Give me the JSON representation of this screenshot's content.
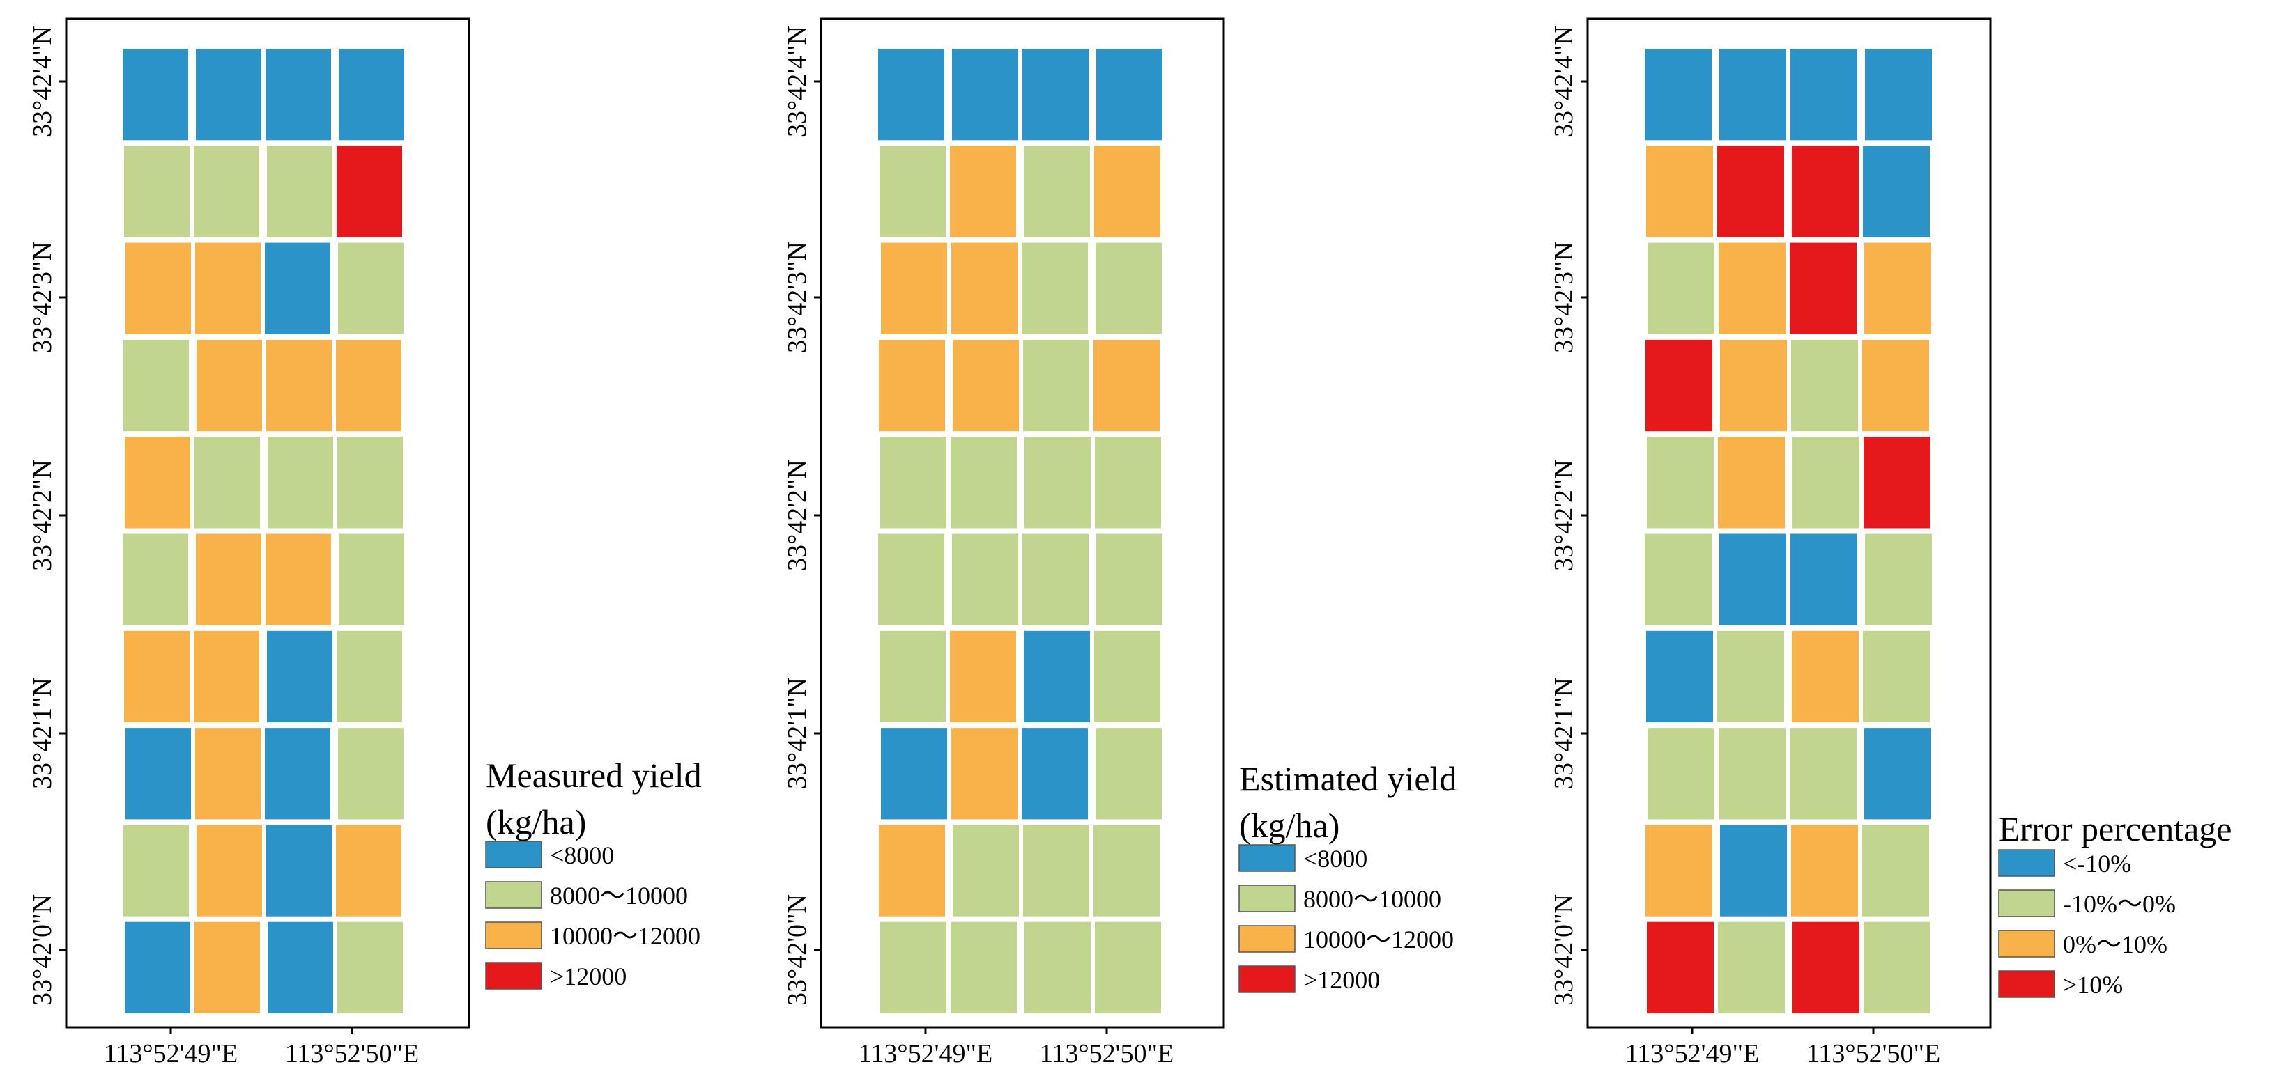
{
  "colors": {
    "blue": "#2b93c8",
    "green": "#c2d58e",
    "orange": "#f9b24a",
    "red": "#e5191c"
  },
  "panels": [
    {
      "id": "measured",
      "legend": {
        "title_line1": "Measured yield",
        "title_line2": "(kg/ha)",
        "items": [
          {
            "label": "<8000",
            "color": "blue"
          },
          {
            "label": "8000～10000",
            "color": "green"
          },
          {
            "label": "10000～12000",
            "color": "orange"
          },
          {
            "label": ">12000",
            "color": "red"
          }
        ]
      },
      "grid": [
        [
          "blue",
          "blue",
          "blue",
          "blue"
        ],
        [
          "green",
          "green",
          "green",
          "red"
        ],
        [
          "orange",
          "orange",
          "blue",
          "green"
        ],
        [
          "green",
          "orange",
          "orange",
          "orange"
        ],
        [
          "orange",
          "green",
          "green",
          "green"
        ],
        [
          "green",
          "orange",
          "orange",
          "green"
        ],
        [
          "orange",
          "orange",
          "blue",
          "green"
        ],
        [
          "blue",
          "orange",
          "blue",
          "green"
        ],
        [
          "green",
          "orange",
          "blue",
          "orange"
        ],
        [
          "blue",
          "orange",
          "blue",
          "green"
        ]
      ]
    },
    {
      "id": "estimated",
      "legend": {
        "title_line1": "Estimated yield",
        "title_line2": "(kg/ha)",
        "items": [
          {
            "label": "<8000",
            "color": "blue"
          },
          {
            "label": "8000～10000",
            "color": "green"
          },
          {
            "label": "10000～12000",
            "color": "orange"
          },
          {
            "label": ">12000",
            "color": "red"
          }
        ]
      },
      "grid": [
        [
          "blue",
          "blue",
          "blue",
          "blue"
        ],
        [
          "green",
          "orange",
          "green",
          "orange"
        ],
        [
          "orange",
          "orange",
          "green",
          "green"
        ],
        [
          "orange",
          "orange",
          "green",
          "orange"
        ],
        [
          "green",
          "green",
          "green",
          "green"
        ],
        [
          "green",
          "green",
          "green",
          "green"
        ],
        [
          "green",
          "orange",
          "blue",
          "green"
        ],
        [
          "blue",
          "orange",
          "blue",
          "green"
        ],
        [
          "orange",
          "green",
          "green",
          "green"
        ],
        [
          "green",
          "green",
          "green",
          "green"
        ]
      ]
    },
    {
      "id": "error",
      "legend": {
        "title_line1": "Error percentage",
        "title_line2": "",
        "items": [
          {
            "label": "<-10%",
            "color": "blue"
          },
          {
            "label": "-10%～0%",
            "color": "green"
          },
          {
            "label": "0%～10%",
            "color": "orange"
          },
          {
            "label": ">10%",
            "color": "red"
          }
        ]
      },
      "grid": [
        [
          "blue",
          "blue",
          "blue",
          "blue"
        ],
        [
          "orange",
          "red",
          "red",
          "blue"
        ],
        [
          "green",
          "orange",
          "red",
          "orange"
        ],
        [
          "red",
          "orange",
          "green",
          "orange"
        ],
        [
          "green",
          "orange",
          "green",
          "red"
        ],
        [
          "green",
          "blue",
          "blue",
          "green"
        ],
        [
          "blue",
          "green",
          "orange",
          "green"
        ],
        [
          "green",
          "green",
          "green",
          "blue"
        ],
        [
          "orange",
          "blue",
          "orange",
          "green"
        ],
        [
          "red",
          "green",
          "red",
          "green"
        ]
      ]
    }
  ],
  "axes": {
    "x_ticks": [
      "113°52'49\"E",
      "113°52'50\"E"
    ],
    "y_ticks": [
      "33°42'4\"N",
      "33°42'3\"N",
      "33°42'2\"N",
      "33°42'1\"N",
      "33°42'0\"N"
    ]
  }
}
